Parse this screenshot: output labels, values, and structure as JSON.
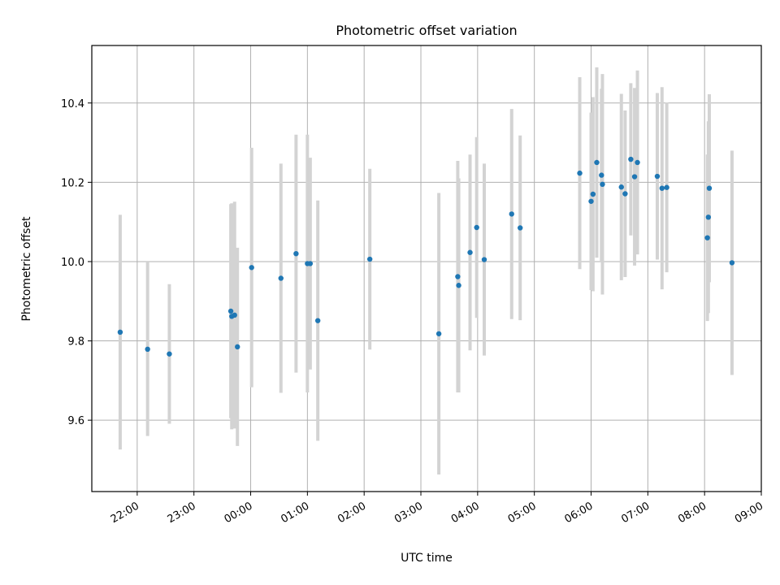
{
  "chart_data": {
    "type": "scatter",
    "title": "Photometric offset variation",
    "xlabel": "UTC time",
    "ylabel": "Photometric offset",
    "x_axis_type": "time",
    "x_range": [
      "21:12",
      "09:00"
    ],
    "ylim": [
      9.42,
      10.545
    ],
    "grid": true,
    "x_ticks": [
      "22:00",
      "23:00",
      "00:00",
      "01:00",
      "02:00",
      "03:00",
      "04:00",
      "05:00",
      "06:00",
      "07:00",
      "08:00",
      "09:00"
    ],
    "y_ticks": [
      "9.6",
      "9.8",
      "10.0",
      "10.2",
      "10.4"
    ],
    "colors": {
      "points": "#1f77b4",
      "error_bars": "#d3d3d3",
      "grid": "#b0b0b0"
    },
    "points": [
      {
        "x": "21:42",
        "y": 9.822,
        "err": 0.296
      },
      {
        "x": "22:11",
        "y": 9.779,
        "err": 0.219
      },
      {
        "x": "22:34",
        "y": 9.767,
        "err": 0.176
      },
      {
        "x": "23:39",
        "y": 9.875,
        "err": 0.27
      },
      {
        "x": "23:40",
        "y": 9.862,
        "err": 0.285
      },
      {
        "x": "23:43",
        "y": 9.865,
        "err": 0.286
      },
      {
        "x": "23:46",
        "y": 9.785,
        "err": 0.25
      },
      {
        "x": "00:01",
        "y": 9.985,
        "err": 0.302
      },
      {
        "x": "00:32",
        "y": 9.958,
        "err": 0.289
      },
      {
        "x": "00:48",
        "y": 10.02,
        "err": 0.3
      },
      {
        "x": "01:00",
        "y": 9.995,
        "err": 0.325
      },
      {
        "x": "01:03",
        "y": 9.995,
        "err": 0.267
      },
      {
        "x": "01:11",
        "y": 9.851,
        "err": 0.303
      },
      {
        "x": "02:06",
        "y": 10.006,
        "err": 0.228
      },
      {
        "x": "03:19",
        "y": 9.818,
        "err": 0.355
      },
      {
        "x": "03:39",
        "y": 9.962,
        "err": 0.292
      },
      {
        "x": "03:40",
        "y": 9.94,
        "err": 0.27
      },
      {
        "x": "03:52",
        "y": 10.023,
        "err": 0.247
      },
      {
        "x": "03:59",
        "y": 10.086,
        "err": 0.228
      },
      {
        "x": "04:07",
        "y": 10.005,
        "err": 0.242
      },
      {
        "x": "04:36",
        "y": 10.12,
        "err": 0.265
      },
      {
        "x": "04:45",
        "y": 10.085,
        "err": 0.233
      },
      {
        "x": "05:48",
        "y": 10.223,
        "err": 0.242
      },
      {
        "x": "06:00",
        "y": 10.152,
        "err": 0.224
      },
      {
        "x": "06:02",
        "y": 10.17,
        "err": 0.245
      },
      {
        "x": "06:06",
        "y": 10.25,
        "err": 0.24
      },
      {
        "x": "06:11",
        "y": 10.218,
        "err": 0.218
      },
      {
        "x": "06:12",
        "y": 10.195,
        "err": 0.278
      },
      {
        "x": "06:32",
        "y": 10.188,
        "err": 0.235
      },
      {
        "x": "06:36",
        "y": 10.171,
        "err": 0.21
      },
      {
        "x": "06:42",
        "y": 10.258,
        "err": 0.192
      },
      {
        "x": "06:46",
        "y": 10.214,
        "err": 0.224
      },
      {
        "x": "06:49",
        "y": 10.25,
        "err": 0.232
      },
      {
        "x": "07:10",
        "y": 10.215,
        "err": 0.21
      },
      {
        "x": "07:15",
        "y": 10.185,
        "err": 0.255
      },
      {
        "x": "07:20",
        "y": 10.187,
        "err": 0.214
      },
      {
        "x": "08:03",
        "y": 10.06,
        "err": 0.21
      },
      {
        "x": "08:04",
        "y": 10.112,
        "err": 0.242
      },
      {
        "x": "08:05",
        "y": 10.185,
        "err": 0.237
      },
      {
        "x": "08:29",
        "y": 9.997,
        "err": 0.283
      }
    ]
  }
}
